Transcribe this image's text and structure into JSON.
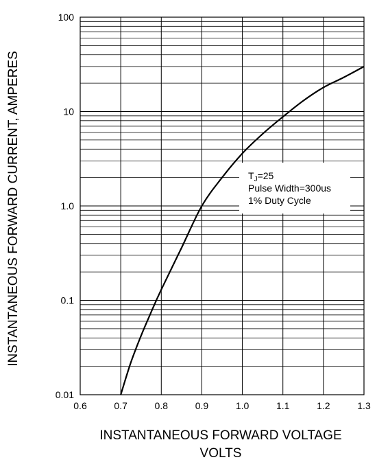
{
  "chart_data": {
    "type": "line",
    "title": "",
    "xlabel": "INSTANTANEOUS FORWARD VOLTAGE",
    "xlabel_line2": "VOLTS",
    "ylabel": "INSTANTANEOUS FORWARD CURRENT, AMPERES",
    "xlim": [
      0.6,
      1.3
    ],
    "ylim": [
      0.01,
      100
    ],
    "y_scale": "log",
    "grid": true,
    "x_ticks": [
      "0.6",
      "0.7",
      "0.8",
      "0.9",
      "1.0",
      "1.1",
      "1.2",
      "1.3"
    ],
    "y_ticks": [
      "0.01",
      "0.1",
      "1.0",
      "10",
      "100"
    ],
    "annotation": {
      "t_prefix": "T",
      "t_subscript": "J",
      "t_suffix": "=25",
      "line2": "Pulse Width=300us",
      "line3": "1% Duty Cycle"
    },
    "series": [
      {
        "x": [
          0.7,
          0.725,
          0.75,
          0.775,
          0.8,
          0.85,
          0.9,
          0.95,
          1.0,
          1.05,
          1.1,
          1.15,
          1.2,
          1.25,
          1.3
        ],
        "y": [
          0.01,
          0.022,
          0.042,
          0.075,
          0.13,
          0.36,
          1.0,
          2.0,
          3.6,
          5.8,
          8.8,
          13,
          18,
          23,
          30
        ]
      }
    ]
  }
}
